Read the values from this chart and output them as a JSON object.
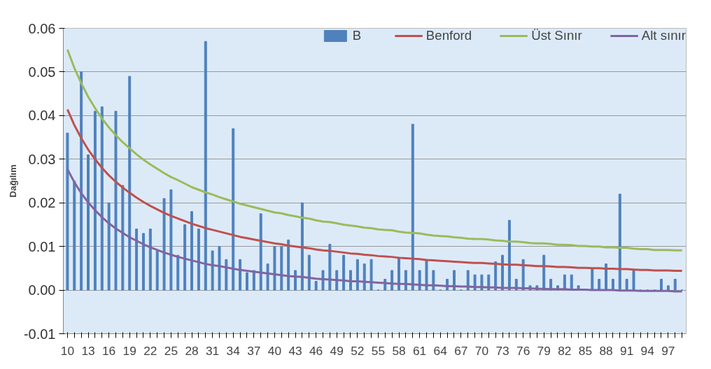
{
  "chart_data": {
    "type": "bar",
    "ylabel": "Dağılım",
    "categories": [
      "10",
      null,
      null,
      "13",
      null,
      null,
      "16",
      null,
      null,
      "19",
      null,
      null,
      "22",
      null,
      null,
      "25",
      null,
      null,
      "28",
      null,
      null,
      "31",
      null,
      null,
      "34",
      null,
      null,
      "37",
      null,
      null,
      "40",
      null,
      null,
      "43",
      null,
      null,
      "46",
      null,
      null,
      "49",
      null,
      null,
      "52",
      null,
      null,
      "55",
      null,
      null,
      "58",
      null,
      null,
      "61",
      null,
      null,
      "64",
      null,
      null,
      "67",
      null,
      null,
      "70",
      null,
      null,
      "73",
      null,
      null,
      "76",
      null,
      null,
      "79",
      null,
      null,
      "82",
      null,
      null,
      "85",
      null,
      null,
      "88",
      null,
      null,
      "91",
      null,
      null,
      "94",
      null,
      null,
      "97",
      null,
      null
    ],
    "ylim": [
      -0.01,
      0.06
    ],
    "yticks": [
      {
        "value": -0.01,
        "label": "-0.01"
      },
      {
        "value": 0,
        "label": "0.00"
      },
      {
        "value": 0.01,
        "label": "0.01"
      },
      {
        "value": 0.02,
        "label": "0.02"
      },
      {
        "value": 0.03,
        "label": "0.03"
      },
      {
        "value": 0.04,
        "label": "0.04"
      },
      {
        "value": 0.05,
        "label": "0.05"
      },
      {
        "value": 0.06,
        "label": "0.06"
      }
    ],
    "grid": "y",
    "legend": "top",
    "series": [
      {
        "name": "B",
        "color": "#4f81bd",
        "values": [
          0.036,
          0.025,
          0.05,
          0.031,
          0.041,
          0.042,
          0.02,
          0.041,
          0.024,
          0.049,
          0.014,
          0.013,
          0.014,
          0.009,
          0.021,
          0.023,
          0.008,
          0.015,
          0.018,
          0.014,
          0.057,
          0.009,
          0.01,
          0.007,
          0.037,
          0.007,
          0.004,
          0.0045,
          0.0175,
          0.006,
          0.01,
          0.01,
          0.0115,
          0.0045,
          0.02,
          0.008,
          0.002,
          0.0045,
          0.0105,
          0.0045,
          0.008,
          0.0045,
          0.007,
          0.006,
          0.007,
          0,
          0.0025,
          0.0045,
          0.0075,
          0.0045,
          0.038,
          0.0045,
          0.007,
          0.0045,
          0,
          0.0025,
          0.0045,
          0,
          0.0045,
          0.0035,
          0.0035,
          0.0035,
          0.0065,
          0.008,
          0.016,
          0.0025,
          0.007,
          0.001,
          0.001,
          0.008,
          0.0025,
          0.001,
          0.0035,
          0.0035,
          0.001,
          0,
          0.005,
          0.0025,
          0.006,
          0.0025,
          0.022,
          0.0025,
          0.0045,
          0,
          0,
          0,
          0.0025,
          0.001,
          0.0025,
          0
        ]
      },
      {
        "name": "Benford",
        "type": "line",
        "color": "#c0504d",
        "values": [
          0.0414,
          0.0378,
          0.0348,
          0.0322,
          0.03,
          0.028,
          0.0263,
          0.0248,
          0.0235,
          0.0223,
          0.0212,
          0.0202,
          0.0193,
          0.0185,
          0.0177,
          0.017,
          0.0164,
          0.0158,
          0.0152,
          0.0147,
          0.0142,
          0.0138,
          0.0134,
          0.013,
          0.0126,
          0.0122,
          0.0119,
          0.0116,
          0.0113,
          0.011,
          0.0107,
          0.0105,
          0.0102,
          0.01,
          0.0098,
          0.0096,
          0.0093,
          0.0091,
          0.009,
          0.0088,
          0.0086,
          0.0084,
          0.0083,
          0.0081,
          0.008,
          0.0078,
          0.0077,
          0.0076,
          0.0074,
          0.0073,
          0.0072,
          0.0071,
          0.0069,
          0.0068,
          0.0067,
          0.0066,
          0.0065,
          0.0064,
          0.0063,
          0.0062,
          0.0062,
          0.0061,
          0.006,
          0.0059,
          0.0058,
          0.0058,
          0.0057,
          0.0056,
          0.0055,
          0.0055,
          0.0054,
          0.0053,
          0.0053,
          0.0052,
          0.0051,
          0.0051,
          0.005,
          0.005,
          0.0049,
          0.0049,
          0.0048,
          0.0048,
          0.0047,
          0.0046,
          0.0046,
          0.0045,
          0.0045,
          0.0045,
          0.0044,
          0.0044
        ]
      },
      {
        "name": "Üst Sınır",
        "type": "line",
        "color": "#9bbb59",
        "values": [
          0.0551,
          0.0509,
          0.0474,
          0.0443,
          0.0417,
          0.0393,
          0.0373,
          0.0355,
          0.0339,
          0.0325,
          0.0311,
          0.0299,
          0.0288,
          0.0278,
          0.0268,
          0.0259,
          0.0252,
          0.0244,
          0.0236,
          0.023,
          0.0224,
          0.0219,
          0.0213,
          0.0208,
          0.0203,
          0.0198,
          0.0194,
          0.019,
          0.0186,
          0.0182,
          0.0178,
          0.0176,
          0.0172,
          0.0169,
          0.0166,
          0.0164,
          0.016,
          0.0157,
          0.0156,
          0.0153,
          0.015,
          0.0148,
          0.0146,
          0.0143,
          0.0142,
          0.0139,
          0.0138,
          0.0137,
          0.0134,
          0.0132,
          0.0131,
          0.013,
          0.0127,
          0.0125,
          0.0124,
          0.0123,
          0.0121,
          0.012,
          0.0118,
          0.0117,
          0.0117,
          0.0116,
          0.0114,
          0.0113,
          0.0111,
          0.0111,
          0.011,
          0.0108,
          0.0107,
          0.0107,
          0.0106,
          0.0104,
          0.0104,
          0.0103,
          0.0101,
          0.0101,
          0.01,
          0.01,
          0.0098,
          0.0098,
          0.0097,
          0.0097,
          0.0095,
          0.0094,
          0.0094,
          0.0092,
          0.0092,
          0.0092,
          0.0091,
          0.0091
        ]
      },
      {
        "name": "Alt sınır",
        "type": "line",
        "color": "#8064a2",
        "values": [
          0.0277,
          0.0247,
          0.0222,
          0.0201,
          0.0183,
          0.0167,
          0.0153,
          0.0141,
          0.0131,
          0.0121,
          0.0113,
          0.0105,
          0.0098,
          0.0092,
          0.0086,
          0.0081,
          0.0076,
          0.0072,
          0.0068,
          0.0064,
          0.006,
          0.0057,
          0.0055,
          0.0052,
          0.0049,
          0.0046,
          0.0044,
          0.0042,
          0.004,
          0.0038,
          0.0036,
          0.0034,
          0.0032,
          0.0031,
          0.003,
          0.0028,
          0.0026,
          0.0025,
          0.0024,
          0.0023,
          0.0022,
          0.002,
          0.002,
          0.0019,
          0.0018,
          0.0017,
          0.0016,
          0.0015,
          0.0014,
          0.0014,
          0.0013,
          0.0012,
          0.0011,
          0.0011,
          0.001,
          0.0009,
          0.0009,
          0.0008,
          0.0008,
          0.0007,
          0.0007,
          0.0006,
          0.0006,
          0.0005,
          0.0005,
          0.0005,
          0.0004,
          0.0004,
          0.0003,
          0.0003,
          0.0002,
          0.0002,
          0.0002,
          0.0001,
          0.0001,
          0.0001,
          0,
          0,
          0,
          0,
          -0.0001,
          -0.0001,
          -0.0001,
          -0.0002,
          -0.0002,
          -0.0002,
          -0.0002,
          -0.0002,
          -0.0003,
          -0.0003
        ]
      }
    ]
  }
}
